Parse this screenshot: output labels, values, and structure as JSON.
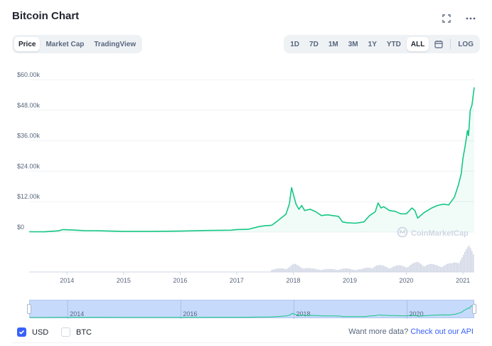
{
  "header": {
    "title": "Bitcoin Chart",
    "fullscreen_icon": "fullscreen-icon",
    "more_icon": "more-icon"
  },
  "view_tabs": [
    {
      "label": "Price",
      "active": true
    },
    {
      "label": "Market Cap",
      "active": false
    },
    {
      "label": "TradingView",
      "active": false
    }
  ],
  "range_tabs": [
    {
      "label": "1D",
      "active": false
    },
    {
      "label": "7D",
      "active": false
    },
    {
      "label": "1M",
      "active": false
    },
    {
      "label": "3M",
      "active": false
    },
    {
      "label": "1Y",
      "active": false
    },
    {
      "label": "YTD",
      "active": false
    },
    {
      "label": "ALL",
      "active": true
    }
  ],
  "calendar_icon": "calendar-icon",
  "log_label": "LOG",
  "watermark": "CoinMarketCap",
  "colors": {
    "line": "#16c784",
    "volume": "#cfd6e4",
    "accent": "#3861fb",
    "navigator": "#c6dafc"
  },
  "chart_data": {
    "type": "line",
    "title": "",
    "xlabel": "",
    "ylabel": "",
    "y_ticks": [
      "$0",
      "$12.00k",
      "$24.00k",
      "$36.00k",
      "$48.00k",
      "$60.00k"
    ],
    "ylim": [
      0,
      60000
    ],
    "x_ticks": [
      "2014",
      "2015",
      "2016",
      "2017",
      "2018",
      "2019",
      "2020",
      "2021"
    ],
    "xlim": [
      2013.33,
      2021.2
    ],
    "grid": "horizontal",
    "series": [
      {
        "x": [
          2013.33,
          2013.6,
          2013.85,
          2013.93,
          2014.1,
          2014.3,
          2014.6,
          2015.0,
          2015.5,
          2016.0,
          2016.5,
          2016.9,
          2017.0,
          2017.2,
          2017.4,
          2017.5,
          2017.62,
          2017.7,
          2017.8,
          2017.87,
          2017.93,
          2017.97,
          2018.0,
          2018.05,
          2018.1,
          2018.15,
          2018.2,
          2018.3,
          2018.4,
          2018.5,
          2018.6,
          2018.7,
          2018.8,
          2018.87,
          2018.95,
          2019.1,
          2019.25,
          2019.35,
          2019.45,
          2019.5,
          2019.55,
          2019.6,
          2019.7,
          2019.8,
          2019.9,
          2020.0,
          2020.1,
          2020.15,
          2020.2,
          2020.3,
          2020.45,
          2020.55,
          2020.65,
          2020.75,
          2020.85,
          2020.92,
          2020.97,
          2021.0,
          2021.04,
          2021.08,
          2021.1,
          2021.13,
          2021.16,
          2021.2
        ],
        "y": [
          130,
          110,
          500,
          1000,
          800,
          600,
          500,
          250,
          250,
          400,
          650,
          750,
          1000,
          1100,
          2200,
          2500,
          2700,
          4000,
          5800,
          7000,
          11000,
          17500,
          15000,
          11000,
          9000,
          10500,
          8500,
          9000,
          8000,
          6500,
          6800,
          6500,
          6200,
          4000,
          3700,
          3500,
          4000,
          6500,
          8000,
          11500,
          9500,
          10000,
          8500,
          8200,
          7200,
          7200,
          9500,
          8500,
          5500,
          7500,
          9500,
          10500,
          11000,
          10700,
          13800,
          18500,
          23000,
          29000,
          34000,
          40000,
          38000,
          48000,
          50000,
          57000
        ]
      }
    ],
    "volume": {
      "x": [
        2017.6,
        2017.9,
        2018.0,
        2018.3,
        2018.6,
        2018.9,
        2019.2,
        2019.45,
        2019.7,
        2020.0,
        2020.2,
        2020.5,
        2020.8,
        2021.0,
        2021.1,
        2021.2
      ],
      "y": [
        0.08,
        0.18,
        0.28,
        0.12,
        0.1,
        0.12,
        0.1,
        0.25,
        0.2,
        0.25,
        0.35,
        0.25,
        0.3,
        0.65,
        0.9,
        0.75
      ]
    }
  },
  "navigator": {
    "labels": [
      "2014",
      "2016",
      "2018",
      "2020"
    ]
  },
  "currency_options": [
    {
      "label": "USD",
      "checked": true
    },
    {
      "label": "BTC",
      "checked": false
    }
  ],
  "api": {
    "text": "Want more data?",
    "link": "Check out our API"
  }
}
